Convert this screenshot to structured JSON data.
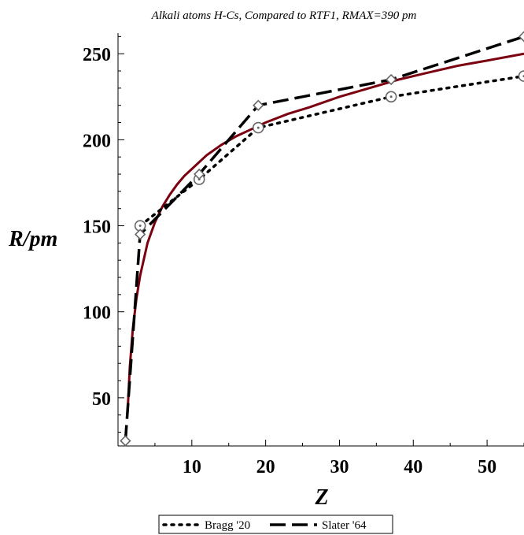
{
  "chart_data": {
    "type": "line",
    "title": "Alkali atoms H-Cs, Compared to RTF1, RMAX=390 pm",
    "xlabel": "Z",
    "ylabel": "R/pm",
    "xlim": [
      0,
      55
    ],
    "ylim": [
      22,
      262
    ],
    "xticks": [
      10,
      20,
      30,
      40,
      50
    ],
    "yticks": [
      50,
      100,
      150,
      200,
      250
    ],
    "grid": false,
    "legend_position": "bottom",
    "series": [
      {
        "name": "Bragg '20",
        "style": "dotted",
        "marker": "circle-dot",
        "color": "#000000",
        "x": [
          3,
          11,
          19,
          37,
          55
        ],
        "y": [
          150,
          177,
          207,
          225,
          237
        ]
      },
      {
        "name": "Slater '64",
        "style": "dashed",
        "marker": "diamond",
        "color": "#000000",
        "x": [
          1,
          3,
          11,
          19,
          37,
          55
        ],
        "y": [
          25,
          145,
          180,
          220,
          235,
          260
        ]
      },
      {
        "name": "",
        "style": "solid",
        "marker": "none",
        "color": "#7a0010",
        "x": [
          1.3,
          1.6,
          2,
          2.5,
          3,
          4,
          5,
          6,
          7,
          8,
          9,
          10,
          12,
          14,
          16,
          18,
          20,
          23,
          26,
          30,
          34,
          38,
          42,
          46,
          50,
          55
        ],
        "y": [
          42,
          68,
          90,
          108,
          121,
          140,
          152,
          161,
          168,
          174,
          179,
          183,
          191,
          197,
          202,
          206,
          210,
          215,
          219,
          225,
          230,
          235,
          239,
          243,
          246,
          250
        ]
      }
    ]
  }
}
